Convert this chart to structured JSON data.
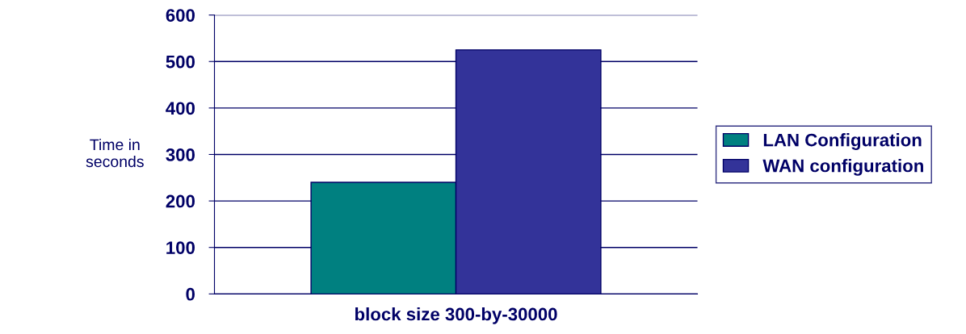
{
  "chart_data": {
    "type": "bar",
    "ylabel": "Time in\nseconds",
    "categories": [
      "block size 300-by-30000"
    ],
    "series": [
      {
        "name": "LAN Configuration",
        "color": "#008080",
        "values": [
          240
        ]
      },
      {
        "name": "WAN configuration",
        "color": "#333399",
        "values": [
          525
        ]
      }
    ],
    "ylim": [
      0,
      600
    ],
    "yticks": [
      0,
      100,
      200,
      300,
      400,
      500,
      600
    ],
    "grid": "y",
    "legend": "right"
  }
}
